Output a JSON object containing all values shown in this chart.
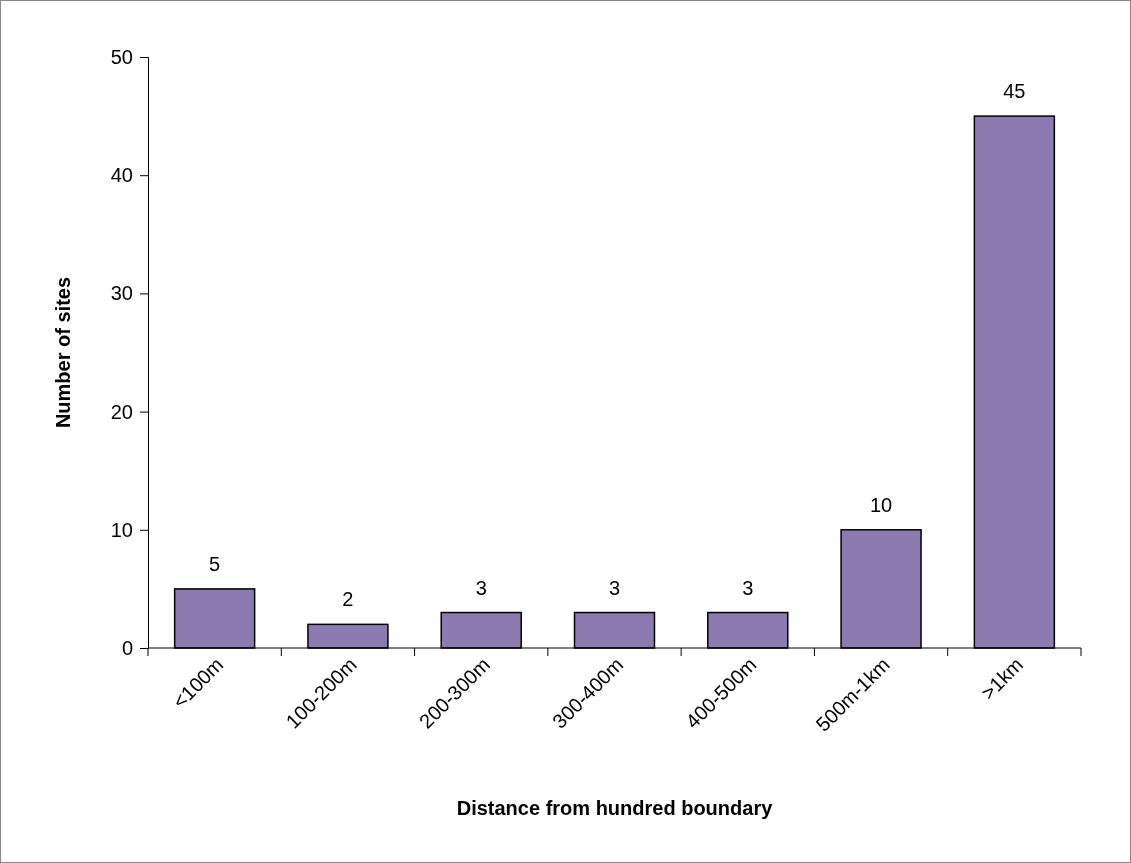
{
  "chart_data": {
    "type": "bar",
    "xlabel": "Distance from hundred boundary",
    "ylabel": "Number of sites",
    "categories": [
      "<100m",
      "100-200m",
      "200-300m",
      "300-400m",
      "400-500m",
      "500m-1km",
      ">1km"
    ],
    "values": [
      5,
      2,
      3,
      3,
      3,
      10,
      45
    ],
    "color": "#8d7ab1",
    "ylim": [
      0,
      50
    ],
    "yticks": [
      0,
      10,
      20,
      30,
      40,
      50
    ],
    "grid": false,
    "data_labels": true
  }
}
